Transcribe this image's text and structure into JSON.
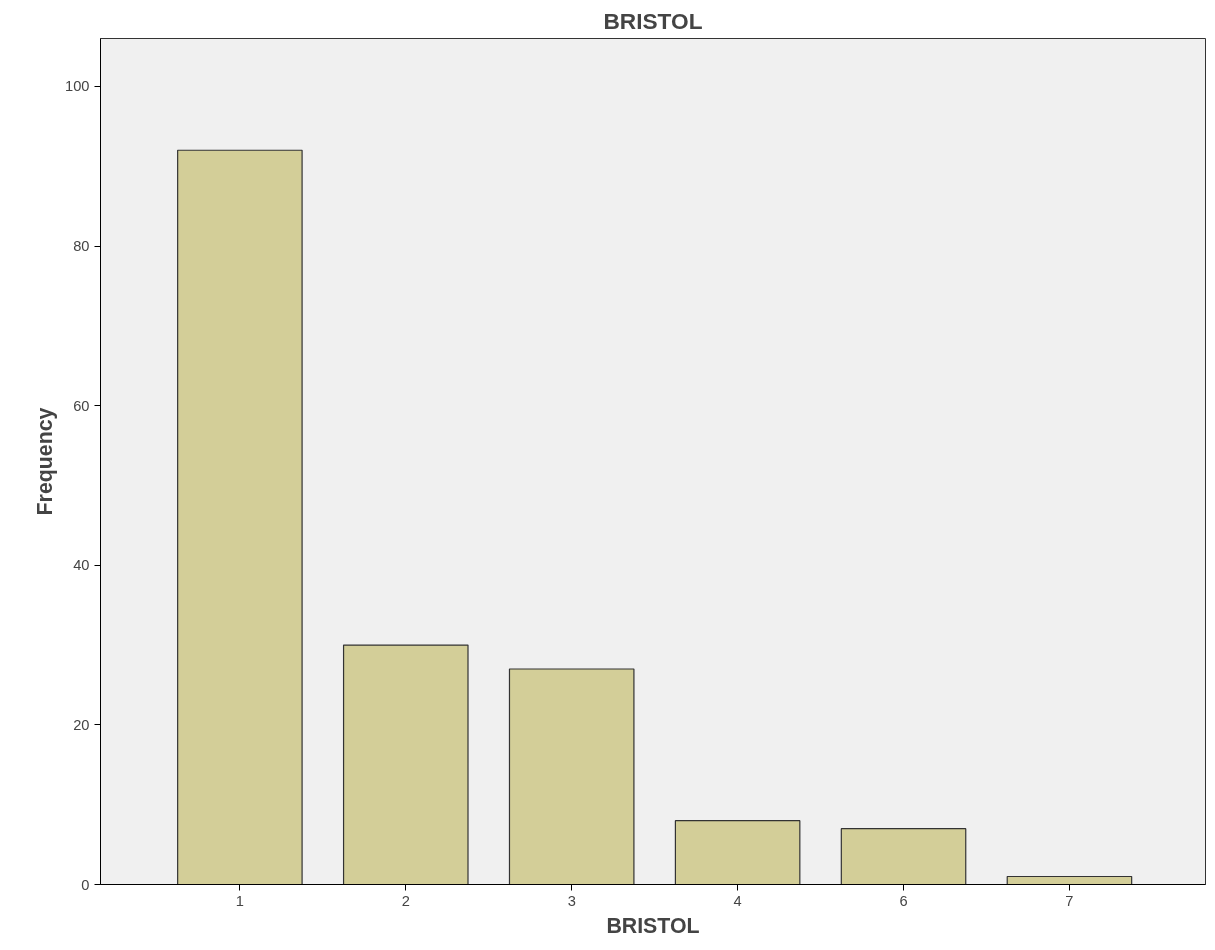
{
  "chart_data": {
    "type": "bar",
    "title": "BRISTOL",
    "xlabel": "BRISTOL",
    "ylabel": "Frequency",
    "categories": [
      "1",
      "2",
      "3",
      "4",
      "6",
      "7"
    ],
    "values": [
      92,
      30,
      27,
      8,
      7,
      1
    ],
    "color": "#d3ce98",
    "ylim": [
      0,
      106
    ],
    "yticks": [
      0,
      20,
      40,
      60,
      80,
      100
    ],
    "grid": false
  }
}
